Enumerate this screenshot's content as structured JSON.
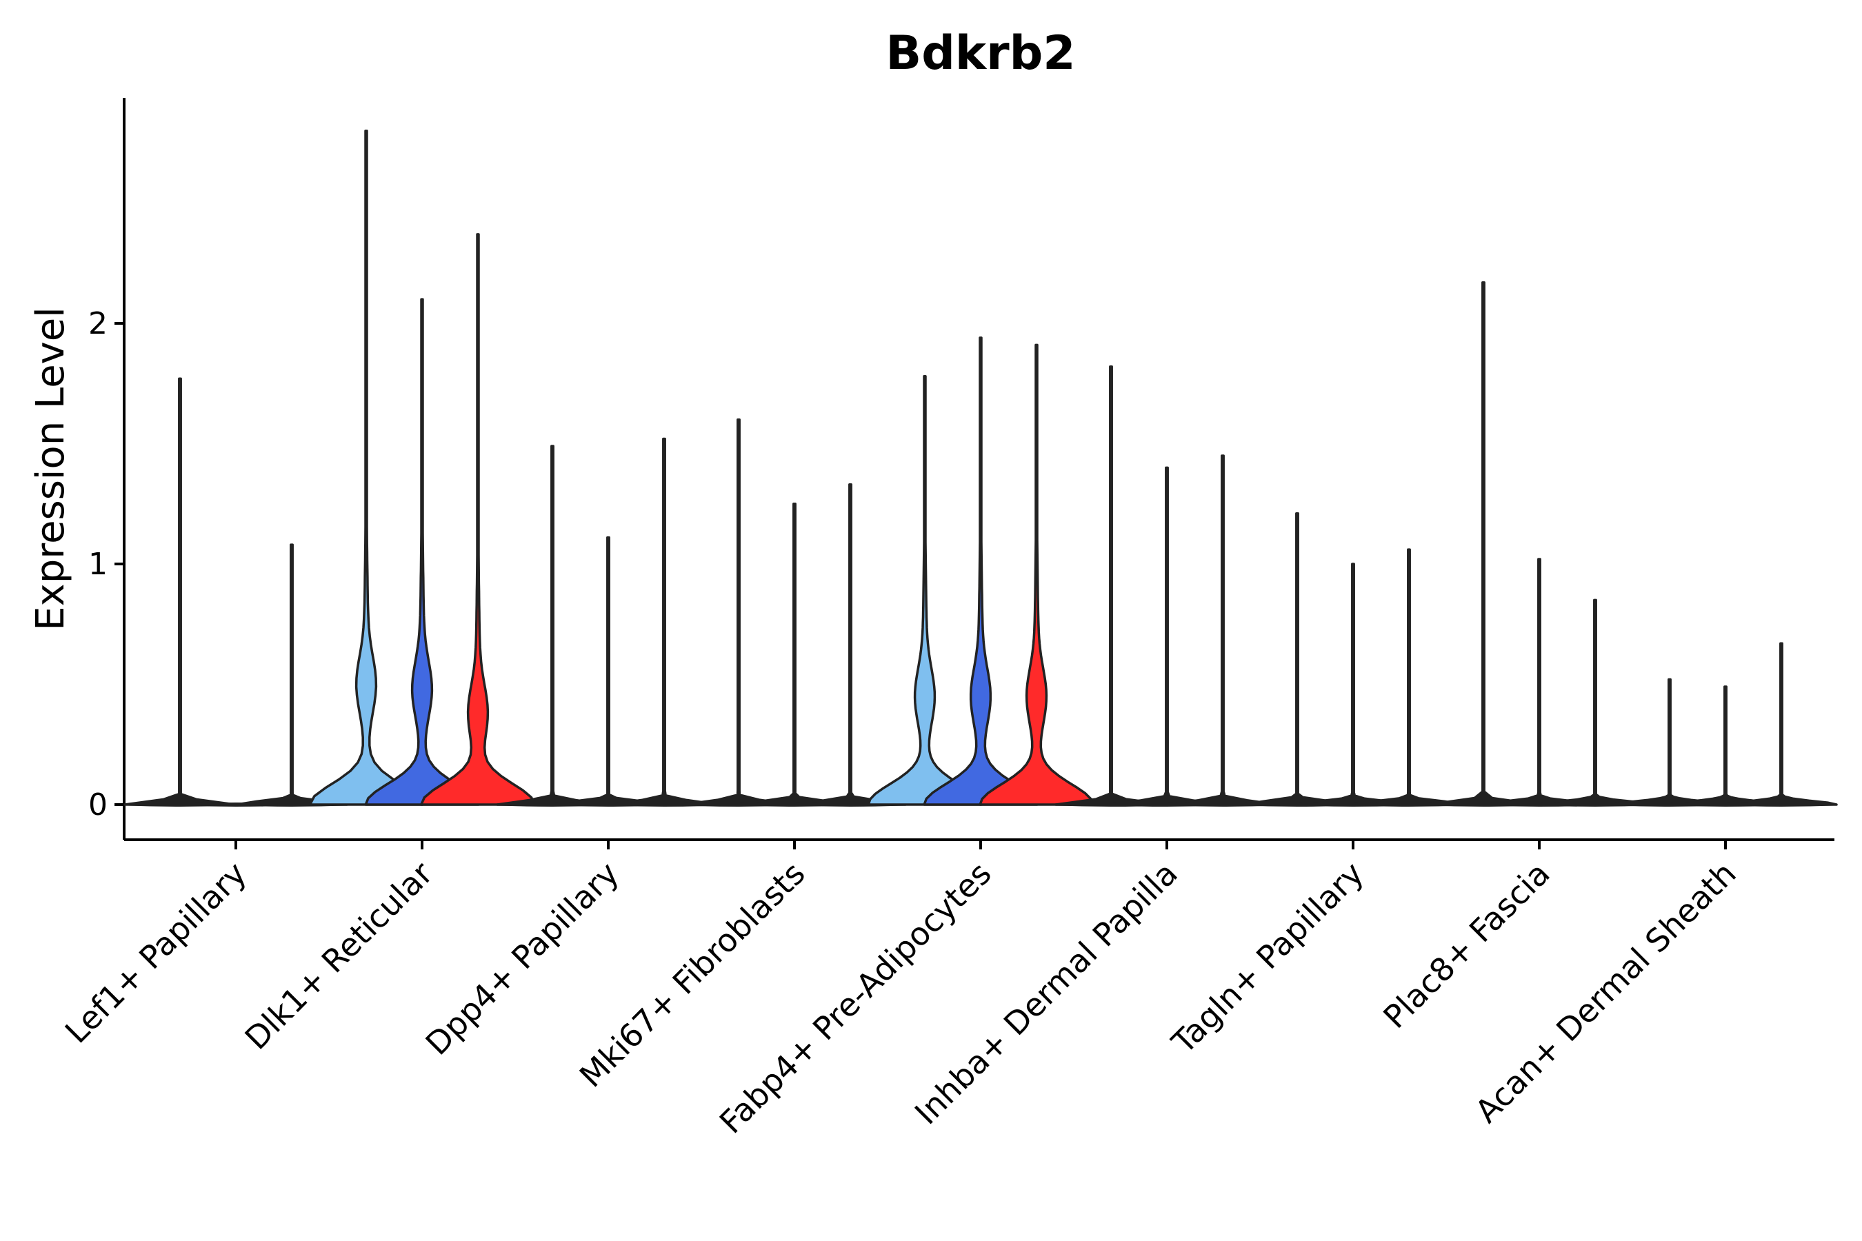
{
  "chart_data": {
    "type": "violin",
    "title": "Bdkrb2",
    "xlabel": "",
    "ylabel": "Expression Level",
    "yticks": [
      0,
      1,
      2
    ],
    "ylim": [
      -0.14,
      2.96
    ],
    "grid": false,
    "legend": "none",
    "categories": [
      "Lef1+ Papillary",
      "Dlk1+ Reticular",
      "Dpp4+ Papillary",
      "Mki67+ Fibroblasts",
      "Fabp4+ Pre-Adipocytes",
      "Inhba+ Dermal Papilla",
      "Tagln+ Papillary",
      "Plac8+ Fascia",
      "Acan+ Dermal Sheath"
    ],
    "group_colors": [
      "#7fbfef",
      "#4169e1",
      "#ff2a2a"
    ],
    "groups": [
      {
        "category": "Lef1+ Papillary",
        "violins": [
          {
            "max": 1.77,
            "shape": "flat"
          },
          {
            "max": 0.0,
            "shape": "flat"
          },
          {
            "max": 1.08,
            "shape": "flat"
          }
        ]
      },
      {
        "category": "Dlk1+ Reticular",
        "violins": [
          {
            "max": 2.8,
            "shape": "bulb",
            "bulb": 0.5
          },
          {
            "max": 2.1,
            "shape": "bulb",
            "bulb": 0.48
          },
          {
            "max": 2.37,
            "shape": "bulb",
            "bulb": 0.38
          }
        ]
      },
      {
        "category": "Dpp4+ Papillary",
        "violins": [
          {
            "max": 1.49,
            "shape": "flat"
          },
          {
            "max": 1.11,
            "shape": "flat"
          },
          {
            "max": 1.52,
            "shape": "flat"
          }
        ]
      },
      {
        "category": "Mki67+ Fibroblasts",
        "violins": [
          {
            "max": 1.6,
            "shape": "flat"
          },
          {
            "max": 1.25,
            "shape": "flat"
          },
          {
            "max": 1.33,
            "shape": "flat"
          }
        ]
      },
      {
        "category": "Fabp4+ Pre-Adipocytes",
        "violins": [
          {
            "max": 1.78,
            "shape": "bulb",
            "bulb": 0.45
          },
          {
            "max": 1.94,
            "shape": "bulb",
            "bulb": 0.45
          },
          {
            "max": 1.91,
            "shape": "bulb",
            "bulb": 0.45
          }
        ]
      },
      {
        "category": "Inhba+ Dermal Papilla",
        "violins": [
          {
            "max": 1.82,
            "shape": "flat"
          },
          {
            "max": 1.4,
            "shape": "flat"
          },
          {
            "max": 1.45,
            "shape": "flat"
          }
        ]
      },
      {
        "category": "Tagln+ Papillary",
        "violins": [
          {
            "max": 1.21,
            "shape": "flat"
          },
          {
            "max": 1.0,
            "shape": "flat"
          },
          {
            "max": 1.06,
            "shape": "flat"
          }
        ]
      },
      {
        "category": "Plac8+ Fascia",
        "violins": [
          {
            "max": 2.17,
            "shape": "flat"
          },
          {
            "max": 1.02,
            "shape": "flat"
          },
          {
            "max": 0.85,
            "shape": "flat"
          }
        ]
      },
      {
        "category": "Acan+ Dermal Sheath",
        "violins": [
          {
            "max": 0.52,
            "shape": "flat"
          },
          {
            "max": 0.49,
            "shape": "flat"
          },
          {
            "max": 0.67,
            "shape": "flat"
          }
        ]
      }
    ]
  }
}
